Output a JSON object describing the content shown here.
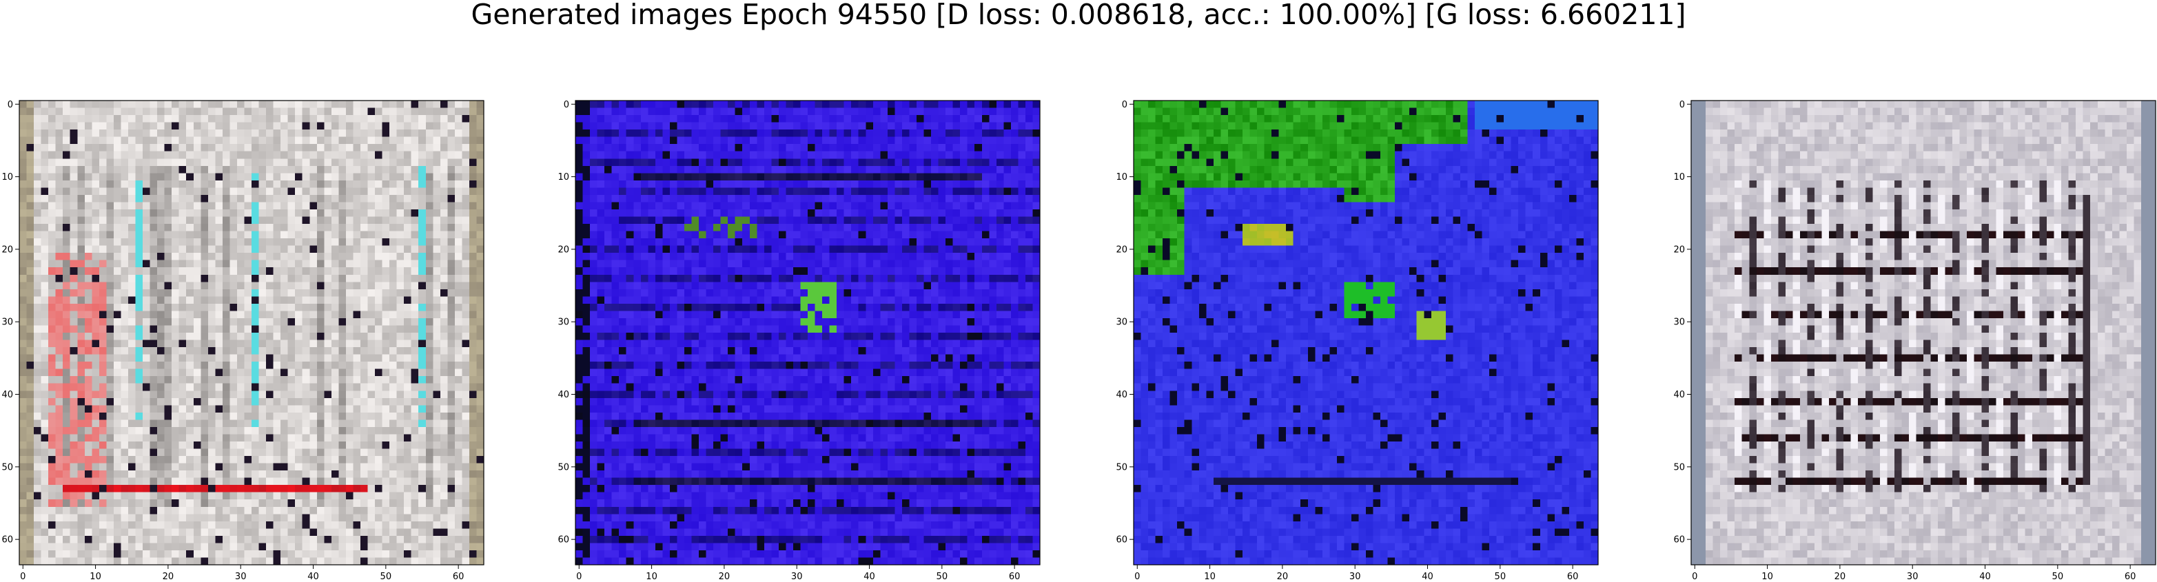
{
  "figure": {
    "title": "Generated images Epoch 94550 [D loss: 0.008618, acc.: 100.00%] [G loss: 6.660211]"
  },
  "chart_data": [
    {
      "type": "heatmap",
      "image_resolution": [
        64,
        64
      ],
      "xlim": [
        0,
        63
      ],
      "ylim": [
        63,
        0
      ],
      "x_ticks": [
        "0",
        "10",
        "20",
        "30",
        "40",
        "50",
        "60"
      ],
      "y_ticks": [
        "0",
        "10",
        "20",
        "30",
        "40",
        "50",
        "60"
      ],
      "dominant_color": "#d8d4d2",
      "pattern": "light gray/white grid texture with red and cyan streaks"
    },
    {
      "type": "heatmap",
      "image_resolution": [
        64,
        64
      ],
      "xlim": [
        0,
        63
      ],
      "ylim": [
        63,
        0
      ],
      "x_ticks": [
        "0",
        "10",
        "20",
        "30",
        "40",
        "50",
        "60"
      ],
      "y_ticks": [
        "0",
        "10",
        "20",
        "30",
        "40",
        "50",
        "60"
      ],
      "dominant_color": "#3a1fe6",
      "pattern": "blue field with dark horizontal streaks and small green/black blobs"
    },
    {
      "type": "heatmap",
      "image_resolution": [
        64,
        64
      ],
      "xlim": [
        0,
        63
      ],
      "ylim": [
        63,
        0
      ],
      "x_ticks": [
        "0",
        "10",
        "20",
        "30",
        "40",
        "50",
        "60"
      ],
      "y_ticks": [
        "0",
        "10",
        "20",
        "30",
        "40",
        "50",
        "60"
      ],
      "dominant_color": "#3535e8",
      "pattern": "blue field with green region in top-left corner and green/black blobs"
    },
    {
      "type": "heatmap",
      "image_resolution": [
        64,
        64
      ],
      "xlim": [
        0,
        63
      ],
      "ylim": [
        63,
        0
      ],
      "x_ticks": [
        "0",
        "10",
        "20",
        "30",
        "40",
        "50",
        "60"
      ],
      "y_ticks": [
        "0",
        "10",
        "20",
        "30",
        "40",
        "50",
        "60"
      ],
      "dominant_color": "#cfcbd3",
      "pattern": "light gray/lavender field with dark grid of horizontal and vertical bars"
    }
  ]
}
